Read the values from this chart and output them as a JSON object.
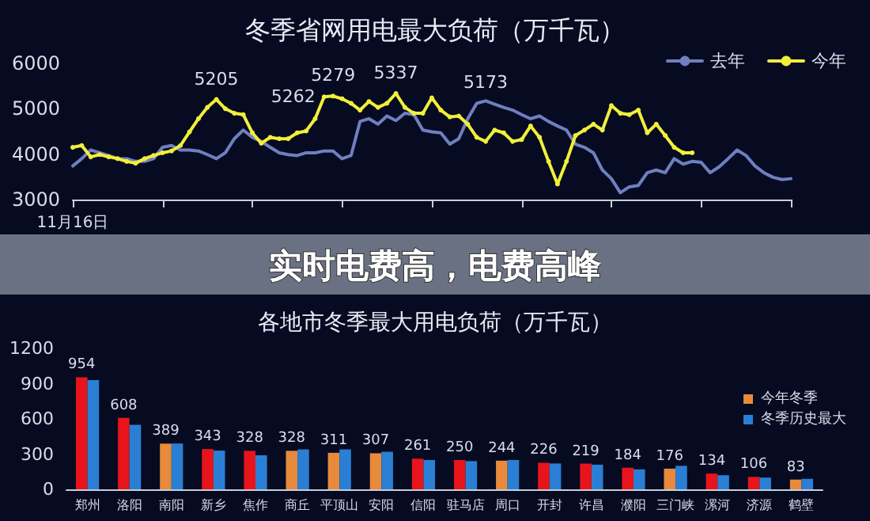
{
  "chart_data": [
    {
      "type": "line",
      "title": "冬季省网用电最大负荷（万千瓦）",
      "annotations": [
        "实时电费高，电费高峰"
      ],
      "categories": [
        "11月16日",
        null,
        null,
        null,
        null,
        null,
        null,
        null,
        null,
        null,
        null,
        null,
        null,
        null,
        null,
        null,
        null,
        null,
        null,
        null,
        null,
        null,
        null,
        null,
        null,
        null,
        null,
        null,
        null,
        null,
        null,
        null,
        null,
        null,
        null,
        null,
        null,
        null,
        null,
        null,
        null,
        null,
        null,
        null,
        null,
        null,
        null,
        null,
        null,
        null,
        null,
        null,
        null,
        null,
        null,
        null,
        null,
        null,
        null,
        null,
        null,
        null,
        null,
        null,
        null,
        null,
        null,
        null,
        null,
        null,
        null,
        null,
        null,
        null,
        null,
        null,
        null,
        null,
        null,
        null,
        null
      ],
      "series": [
        {
          "name": "去年",
          "color": "#6f7fc0",
          "marker": "none",
          "values": [
            3740,
            3900,
            4090,
            4030,
            3970,
            3900,
            3900,
            3840,
            3840,
            3900,
            4150,
            4190,
            4090,
            4090,
            4070,
            3990,
            3900,
            4030,
            4340,
            4530,
            4370,
            4280,
            4150,
            4030,
            3990,
            3970,
            4030,
            4030,
            4070,
            4070,
            3900,
            3970,
            4720,
            4780,
            4660,
            4840,
            4740,
            4900,
            4870,
            4530,
            4490,
            4470,
            4220,
            4340,
            4780,
            5120,
            5173,
            5100,
            5030,
            4970,
            4870,
            4780,
            4840,
            4720,
            4620,
            4530,
            4220,
            4150,
            4030,
            3650,
            3460,
            3150,
            3280,
            3310,
            3590,
            3650,
            3590,
            3900,
            3780,
            3840,
            3820,
            3590,
            3720,
            3900,
            4090,
            3970,
            3740,
            3590,
            3490,
            3440,
            3460
          ],
          "value_labels": [
            null,
            null,
            null,
            null,
            null,
            null,
            null,
            null,
            null,
            null,
            null,
            null,
            null,
            null,
            null,
            null,
            null,
            null,
            null,
            null,
            null,
            null,
            null,
            null,
            null,
            null,
            null,
            null,
            null,
            null,
            null,
            null,
            null,
            null,
            null,
            null,
            null,
            null,
            null,
            null,
            null,
            null,
            null,
            null,
            null,
            null,
            "5173",
            null,
            null,
            null,
            null,
            null,
            null,
            null,
            null,
            null,
            null,
            null,
            null,
            null,
            null,
            null,
            null,
            null,
            null,
            null,
            null,
            null,
            null,
            null,
            null,
            null,
            null,
            null,
            null,
            null,
            null,
            null,
            null,
            null,
            null
          ]
        },
        {
          "name": "今年",
          "color": "#f2ef3a",
          "marker": "circle",
          "values": [
            4150,
            4190,
            3940,
            3990,
            3940,
            3900,
            3840,
            3800,
            3900,
            3970,
            4030,
            4070,
            4190,
            4490,
            4780,
            5030,
            5205,
            5000,
            4900,
            4870,
            4470,
            4240,
            4370,
            4340,
            4340,
            4470,
            4510,
            4780,
            5262,
            5279,
            5220,
            5120,
            4970,
            5160,
            5030,
            5120,
            5337,
            5030,
            4900,
            4900,
            5240,
            4970,
            4820,
            4840,
            4660,
            4370,
            4280,
            4530,
            4470,
            4280,
            4320,
            4620,
            4370,
            3840,
            3340,
            3840,
            4410,
            4530,
            4660,
            4530,
            5070,
            4900,
            4870,
            4970,
            4470,
            4660,
            4410,
            4150,
            4030,
            4030,
            null,
            null,
            null,
            null,
            null,
            null,
            null,
            null,
            null,
            null,
            null
          ],
          "value_labels": [
            null,
            null,
            null,
            null,
            null,
            null,
            null,
            null,
            null,
            null,
            null,
            null,
            null,
            null,
            null,
            null,
            "5205",
            null,
            null,
            null,
            null,
            null,
            null,
            null,
            null,
            null,
            null,
            null,
            "5262",
            "5279",
            null,
            null,
            null,
            null,
            null,
            null,
            "5337",
            null,
            null,
            null,
            null,
            null,
            null,
            null,
            null,
            null,
            null,
            null,
            null,
            null,
            null,
            null,
            null,
            null,
            null,
            null,
            null,
            null,
            null,
            null,
            null,
            null,
            null,
            null,
            null,
            null,
            null,
            null,
            null,
            null,
            null,
            null,
            null,
            null,
            null,
            null,
            null,
            null,
            null,
            null,
            null
          ]
        }
      ],
      "ylim": [
        3000,
        6000
      ],
      "yticks": [
        3000,
        4000,
        5000,
        6000
      ],
      "grid": false,
      "legend": "top right"
    },
    {
      "type": "bar",
      "title": "各地市冬季最大用电负荷（万千瓦）",
      "categories": [
        "郑州",
        "洛阳",
        "南阳",
        "新乡",
        "焦作",
        "商丘",
        "平顶山",
        "安阳",
        "信阳",
        "驻马店",
        "周口",
        "开封",
        "许昌",
        "濮阳",
        "三门峡",
        "漯河",
        "济源",
        "鹤壁"
      ],
      "series": [
        {
          "name": "今年冬季",
          "color": "#e88a3c",
          "colors": [
            "#e8141b",
            "#e8141b",
            "#e88a3c",
            "#e8141b",
            "#e8141b",
            "#e88a3c",
            "#e88a3c",
            "#e88a3c",
            "#e8141b",
            "#e8141b",
            "#e88a3c",
            "#e8141b",
            "#e8141b",
            "#e8141b",
            "#e88a3c",
            "#e8141b",
            "#e8141b",
            "#e88a3c"
          ],
          "values": [
            954,
            608,
            389,
            343,
            328,
            328,
            311,
            307,
            261,
            250,
            244,
            226,
            219,
            184,
            176,
            134,
            106,
            83
          ],
          "value_labels": [
            "954",
            "608",
            "389",
            "343",
            "328",
            "328",
            "311",
            "307",
            "261",
            "250",
            "244",
            "226",
            "219",
            "184",
            "176",
            "134",
            "106",
            "83"
          ]
        },
        {
          "name": "冬季历史最大",
          "color": "#2a7fd4",
          "values": [
            930,
            550,
            390,
            330,
            290,
            340,
            340,
            320,
            250,
            240,
            250,
            220,
            210,
            170,
            200,
            120,
            100,
            90
          ]
        }
      ],
      "ylim": [
        0,
        1200
      ],
      "yticks": [
        0,
        300,
        600,
        900,
        1200
      ],
      "grid": false,
      "legend": "right"
    }
  ]
}
